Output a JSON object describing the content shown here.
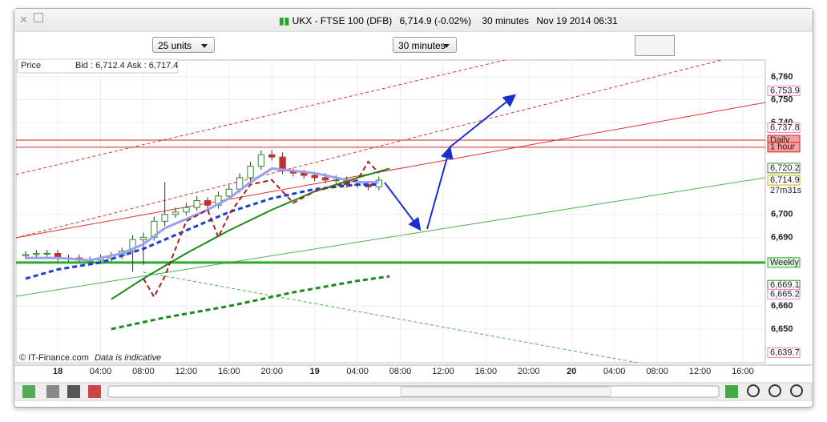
{
  "window": {
    "title": "UKX - FTSE 100 (DFB)",
    "quote": "6,714.9 (-0.02%)",
    "interval": "30 minutes",
    "timestamp": "Nov 19 2014 06:31"
  },
  "toolbar": {
    "units": "25 units",
    "period": "30 minutes"
  },
  "chart_data": {
    "type": "candlestick",
    "legend_label": "Price",
    "quote_line": "Bid : 6,712.4 Ask : 6,717.4",
    "credit": "© IT-Finance.com",
    "note": "Data is indicative",
    "up_color": "#2e8b2e",
    "down_color": "#c03030",
    "x": [
      -3,
      -2,
      -1,
      0,
      1,
      2,
      3,
      4,
      5,
      6,
      7,
      8,
      9,
      10,
      11,
      12,
      13,
      14,
      15,
      16,
      17,
      18,
      19,
      20,
      21,
      22,
      23,
      24,
      25,
      26,
      27,
      28,
      29,
      30
    ],
    "open": [
      6682,
      6682.5,
      6683,
      6683,
      6681,
      6681,
      6680,
      6680,
      6681,
      6682,
      6684,
      6689,
      6690,
      6697,
      6700,
      6701,
      6703,
      6706,
      6704,
      6708,
      6711,
      6716,
      6721,
      6726,
      6725,
      6719,
      6718,
      6717,
      6716,
      6715,
      6715,
      6713,
      6713,
      6712
    ],
    "high": [
      6684,
      6684.5,
      6684.5,
      6684.5,
      6682.5,
      6682.5,
      6681.5,
      6682.5,
      6683.5,
      6685.5,
      6691,
      6692,
      6699,
      6714,
      6703,
      6705,
      6708,
      6707.5,
      6710,
      6713,
      6718,
      6723,
      6728,
      6728,
      6727,
      6720,
      6719.5,
      6718.5,
      6718,
      6717,
      6716.5,
      6715,
      6714.5,
      6716.5
    ],
    "low": [
      6680.5,
      6681,
      6681.5,
      6679.5,
      6679.5,
      6679,
      6678.5,
      6678.5,
      6679.5,
      6680.5,
      6675,
      6678,
      6688.5,
      6695,
      6698.5,
      6699.5,
      6701.5,
      6702.5,
      6702.5,
      6706.5,
      6709.5,
      6714.5,
      6719.5,
      6723.5,
      6717.5,
      6716.5,
      6715.5,
      6714.5,
      6713.5,
      6713.5,
      6711.5,
      6711.5,
      6710.5,
      6710.5
    ],
    "close": [
      6682.5,
      6683,
      6683,
      6681,
      6681,
      6680,
      6680,
      6681,
      6682,
      6684,
      6689,
      6690,
      6697,
      6700,
      6701,
      6703,
      6706,
      6704,
      6708,
      6711,
      6716,
      6721,
      6726,
      6725,
      6719,
      6718,
      6717,
      6716,
      6715,
      6715,
      6713,
      6713,
      6712,
      6714.9
    ],
    "xlim": [
      -3.9,
      66.1
    ],
    "xticks": [
      {
        "value": 0,
        "label": "18"
      },
      {
        "value": 4,
        "label": "04:00"
      },
      {
        "value": 8,
        "label": "08:00"
      },
      {
        "value": 12,
        "label": "12:00"
      },
      {
        "value": 16,
        "label": "16:00"
      },
      {
        "value": 20,
        "label": "20:00"
      },
      {
        "value": 24,
        "label": "19"
      },
      {
        "value": 28,
        "label": "04:00"
      },
      {
        "value": 32,
        "label": "08:00"
      },
      {
        "value": 36,
        "label": "12:00"
      },
      {
        "value": 40,
        "label": "16:00"
      },
      {
        "value": 44,
        "label": "20:00"
      },
      {
        "value": 48,
        "label": "20"
      },
      {
        "value": 52,
        "label": "04:00"
      },
      {
        "value": 56,
        "label": "08:00"
      },
      {
        "value": 60,
        "label": "12:00"
      },
      {
        "value": 64,
        "label": "16:00"
      }
    ],
    "ylim": [
      6635.3,
      6767.3
    ],
    "yticks": [
      {
        "value": 6760,
        "label": "6,760"
      },
      {
        "value": 6750,
        "label": "6,750"
      },
      {
        "value": 6740,
        "label": "6,740"
      },
      {
        "value": 6700,
        "label": "6,700"
      },
      {
        "value": 6690,
        "label": "6,690"
      },
      {
        "value": 6660,
        "label": "6,660"
      },
      {
        "value": 6650,
        "label": "6,650"
      }
    ],
    "grid": true,
    "levels": [
      {
        "label": "6,753.9",
        "value": 6753.9,
        "color": "#f080c8",
        "line": false
      },
      {
        "label": "6,737.8",
        "value": 6737.8,
        "color": "#f080c8",
        "line": false
      },
      {
        "label": "Daily",
        "value": 6732.4,
        "color": "#d02020",
        "line": true
      },
      {
        "label": "1 hour",
        "value": 6729.3,
        "color": "#d02020",
        "line": true
      },
      {
        "label": "6,720.2",
        "value": 6720.2,
        "color": "#2e8b2e",
        "line": false
      },
      {
        "label": "6,714.9",
        "value": 6714.9,
        "color": "#e8a000",
        "line": false
      },
      {
        "label": "Weekly",
        "value": 6679,
        "color": "#2eaa2e",
        "line": true
      },
      {
        "label": "6,669.1",
        "value": 6669.1,
        "color": "#2e8b2e",
        "line": false
      },
      {
        "label": "6,665.2",
        "value": 6665.2,
        "color": "#f080c8",
        "line": false
      },
      {
        "label": "6,639.7",
        "value": 6639.7,
        "color": "#f080c8",
        "line": false
      }
    ],
    "countdown": "27m31s",
    "overlays": [
      {
        "x": [
          -3,
          0,
          3,
          6,
          8,
          10,
          12,
          14,
          16,
          18,
          20,
          22,
          24,
          26,
          28,
          30
        ],
        "values": [
          6681,
          6681,
          6680,
          6683,
          6687,
          6694,
          6698,
          6702,
          6707,
          6714,
          6720,
          6719,
          6718,
          6716,
          6714,
          6714
        ],
        "color": "#9aa0ee",
        "width": 3,
        "dash": false
      },
      {
        "x": [
          -3,
          0,
          4,
          8,
          12,
          16,
          20,
          24,
          28,
          30
        ],
        "values": [
          6672,
          6676,
          6679,
          6685,
          6693,
          6701,
          6707,
          6711,
          6713,
          6713
        ],
        "color": "#1a3fd0",
        "width": 3,
        "dash": true
      },
      {
        "x": [
          5,
          8,
          12,
          16,
          20,
          24,
          28,
          31
        ],
        "values": [
          6663,
          6672,
          6683,
          6693,
          6702,
          6710,
          6716,
          6720
        ],
        "color": "#1a8a1a",
        "width": 2,
        "dash": false
      },
      {
        "x": [
          5,
          10,
          16,
          22,
          28,
          31
        ],
        "values": [
          6650,
          6655,
          6660,
          6666,
          6671,
          6673
        ],
        "color": "#1a8a1a",
        "width": 3,
        "dash": true
      },
      {
        "x": [
          8,
          9,
          10,
          12,
          14,
          15,
          16,
          18,
          20,
          22,
          24,
          28,
          29,
          30
        ],
        "values": [
          6672,
          6664,
          6673,
          6697,
          6702,
          6690,
          6700,
          6713,
          6715,
          6705,
          6710,
          6715,
          6723,
          6718
        ],
        "color": "#a02020",
        "width": 2,
        "dash": true
      }
    ],
    "trend_lines": [
      {
        "x": [
          -3.9,
          66.1
        ],
        "values": [
          6689.8,
          6748.8
        ],
        "color": "#e03030",
        "dash": false
      },
      {
        "x": [
          -3.9,
          41.8
        ],
        "values": [
          6717.4,
          6767.3
        ],
        "color": "#e03030",
        "dash": true
      },
      {
        "x": [
          -3.9,
          62
        ],
        "values": [
          6689.8,
          6767.3
        ],
        "color": "#e03030",
        "dash": true
      },
      {
        "x": [
          -3.9,
          66.1
        ],
        "values": [
          6664.3,
          6716
        ],
        "color": "#50b050",
        "dash": false
      },
      {
        "x": [
          8,
          54.2
        ],
        "values": [
          6674.8,
          6635.3
        ],
        "color": "#50b050",
        "dash": true
      }
    ]
  }
}
